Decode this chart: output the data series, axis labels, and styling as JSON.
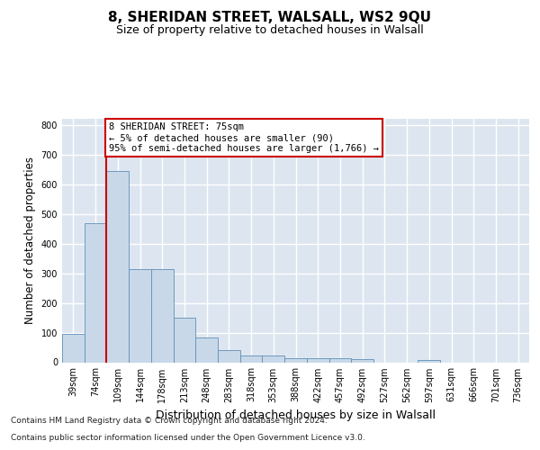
{
  "title": "8, SHERIDAN STREET, WALSALL, WS2 9QU",
  "subtitle": "Size of property relative to detached houses in Walsall",
  "xlabel": "Distribution of detached houses by size in Walsall",
  "ylabel": "Number of detached properties",
  "categories": [
    "39sqm",
    "74sqm",
    "109sqm",
    "144sqm",
    "178sqm",
    "213sqm",
    "248sqm",
    "283sqm",
    "318sqm",
    "353sqm",
    "388sqm",
    "422sqm",
    "457sqm",
    "492sqm",
    "527sqm",
    "562sqm",
    "597sqm",
    "631sqm",
    "666sqm",
    "701sqm",
    "736sqm"
  ],
  "values": [
    95,
    470,
    645,
    315,
    315,
    150,
    85,
    40,
    22,
    22,
    15,
    15,
    13,
    10,
    0,
    0,
    8,
    0,
    0,
    0,
    0
  ],
  "bar_color": "#c8d8e8",
  "bar_edge_color": "#6090b8",
  "annotation_box_text": "8 SHERIDAN STREET: 75sqm\n← 5% of detached houses are smaller (90)\n95% of semi-detached houses are larger (1,766) →",
  "annotation_box_color": "#cc0000",
  "ylim": [
    0,
    820
  ],
  "yticks": [
    0,
    100,
    200,
    300,
    400,
    500,
    600,
    700,
    800
  ],
  "background_color": "#dde6f0",
  "grid_color": "#ffffff",
  "footer_line1": "Contains HM Land Registry data © Crown copyright and database right 2024.",
  "footer_line2": "Contains public sector information licensed under the Open Government Licence v3.0.",
  "title_fontsize": 11,
  "subtitle_fontsize": 9,
  "xlabel_fontsize": 9,
  "ylabel_fontsize": 8.5,
  "tick_fontsize": 7,
  "footer_fontsize": 6.5,
  "annotation_fontsize": 7.5,
  "red_line_x": 1.5
}
